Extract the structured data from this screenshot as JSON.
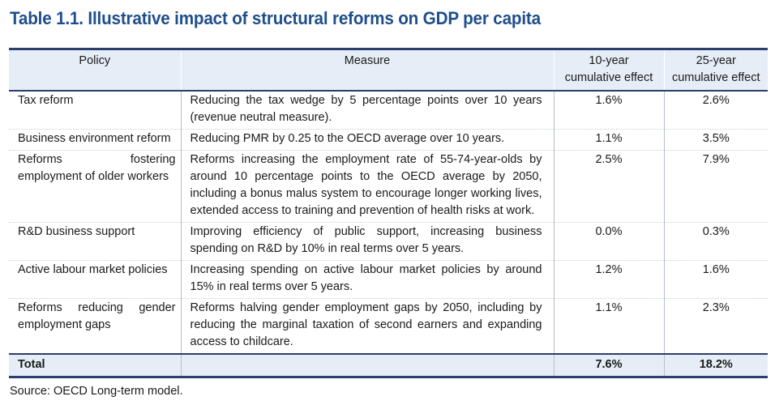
{
  "title": "Table 1.1. Illustrative impact of structural reforms on GDP per capita",
  "columns": {
    "policy": "Policy",
    "measure": "Measure",
    "ten_year": [
      "10-year",
      "cumulative effect"
    ],
    "twentyfive_year": [
      "25-year",
      "cumulative effect"
    ]
  },
  "rows": [
    {
      "policy": [
        "Tax reform"
      ],
      "measure": "Reducing the tax wedge by 5 percentage points over 10 years (revenue neutral measure).",
      "ten_year": "1.6%",
      "twentyfive_year": "2.6%"
    },
    {
      "policy": [
        "Business environment reform"
      ],
      "measure": "Reducing PMR by 0.25 to the OECD average over 10 years.",
      "ten_year": "1.1%",
      "twentyfive_year": "3.5%"
    },
    {
      "policy": [
        "Reforms fostering",
        "employment of older workers"
      ],
      "measure": "Reforms increasing the employment rate of 55-74-year-olds by around 10 percentage points to the OECD average by 2050, including a bonus malus system to encourage longer working lives, extended access to training and prevention of health risks at work.",
      "ten_year": "2.5%",
      "twentyfive_year": "7.9%"
    },
    {
      "policy": [
        "R&D business support"
      ],
      "measure": "Improving efficiency of public support, increasing business spending on R&D by 10% in real terms over 5 years.",
      "ten_year": "0.0%",
      "twentyfive_year": "0.3%"
    },
    {
      "policy": [
        "Active labour market policies"
      ],
      "measure": "Increasing spending on active labour market policies by around 15% in real terms over 5 years.",
      "ten_year": "1.2%",
      "twentyfive_year": "1.6%"
    },
    {
      "policy": [
        "Reforms reducing gender",
        "employment gaps"
      ],
      "measure": "Reforms halving gender employment gaps by 2050, including by reducing the marginal taxation of second earners and expanding access to childcare.",
      "ten_year": "1.1%",
      "twentyfive_year": "2.3%"
    }
  ],
  "total": {
    "label": "Total",
    "ten_year": "7.6%",
    "twentyfive_year": "18.2%"
  },
  "source": "Source: OECD Long-term model."
}
